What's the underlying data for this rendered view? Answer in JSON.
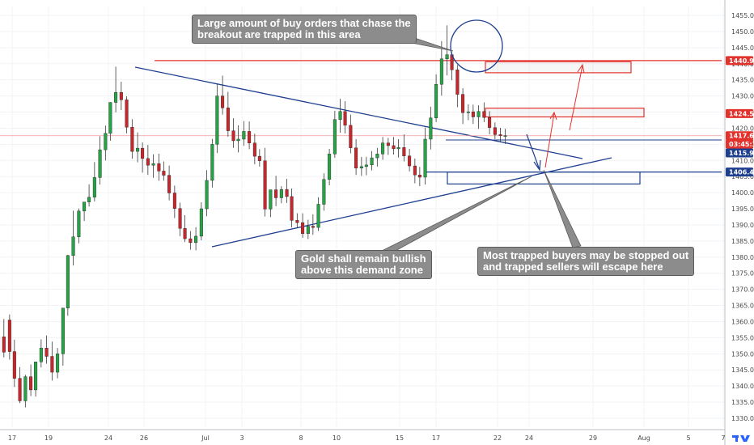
{
  "chart_data": {
    "type": "candlestick",
    "title": "",
    "xlabel": "",
    "ylabel": "",
    "ylim": [
      1327,
      1457
    ],
    "y_ticks": [
      1330,
      1335,
      1340,
      1345,
      1350,
      1355,
      1360,
      1365,
      1370,
      1375,
      1380,
      1385,
      1390,
      1395,
      1400,
      1405,
      1410,
      1415,
      1420,
      1425,
      1430,
      1435,
      1440,
      1445,
      1450,
      1455
    ],
    "y_tick_labels": [
      "1330.00",
      "1335.00",
      "1340.00",
      "1345.00",
      "1350.00",
      "1355.00",
      "1360.00",
      "1365.00",
      "1370.00",
      "1375.00",
      "1380.00",
      "1385.00",
      "1390.00",
      "1395.00",
      "1400.00",
      "1405.00",
      "1410.00",
      "1415.00",
      "1420.00",
      "1425.00",
      "1430.00",
      "1435.00",
      "1440.00",
      "1445.00",
      "1450.00",
      "1455.00"
    ],
    "x_ticks": [
      "17",
      "19",
      "24",
      "26",
      "Jul",
      "3",
      "8",
      "10",
      "15",
      "17",
      "22",
      "24",
      "29",
      "Aug",
      "5",
      "7"
    ],
    "price_tags": [
      {
        "label": "1440.98",
        "value": 1440.98,
        "color": "#e3312b"
      },
      {
        "label": "1424.55",
        "value": 1424.55,
        "color": "#e3312b"
      },
      {
        "label": "1417.67",
        "value": 1417.67,
        "color": "#e3312b"
      },
      {
        "label": "03:45:36",
        "value": 1415.3,
        "color": "#e3312b"
      },
      {
        "label": "1415.95",
        "value": 1412.9,
        "color": "#1e3f8f"
      },
      {
        "label": "1406.40",
        "value": 1406.4,
        "color": "#1e3f8f"
      }
    ],
    "horizontal_lines": [
      {
        "name": "resistance",
        "value": 1440.98,
        "color": "#e3312b"
      },
      {
        "name": "current-price",
        "value": 1417.67,
        "color": "#f09a9a"
      },
      {
        "name": "support",
        "value": 1406.4,
        "color": "#1e3f8f"
      }
    ],
    "zones": [
      {
        "name": "supply-zone-upper",
        "from": 1437.2,
        "to": 1440.6,
        "color": "#e3312b"
      },
      {
        "name": "supply-zone-lower",
        "from": 1423.5,
        "to": 1426.2,
        "color": "#e3312b"
      },
      {
        "name": "demand-zone",
        "from": 1402.7,
        "to": 1406.4,
        "color": "#1e3f8f"
      }
    ],
    "trendlines": [
      {
        "name": "descending-resistance",
        "from_date": "Jun 23",
        "from": 1439.0,
        "to_date": "Jul 26",
        "to": 1408.5
      },
      {
        "name": "ascending-support",
        "from_date": "Jun 28",
        "from": 1382.5,
        "to_date": "Jul 27",
        "to": 1409.7
      }
    ],
    "candles": {
      "first_date": "Jun 12",
      "last_date": "Jul 23",
      "open": [
        1350.4,
        1355.3,
        1360.5,
        1350.7,
        1342.4,
        1335.4,
        1342.9,
        1338.8,
        1347.5,
        1351.8,
        1349.2,
        1344.3,
        1350.0,
        1364.2,
        1380.5,
        1386.3,
        1394.3,
        1397.1,
        1398.6,
        1404.7,
        1413.3,
        1418.4,
        1428.0,
        1431.1,
        1428.8,
        1420.3,
        1412.8,
        1413.8,
        1410.6,
        1408.5,
        1409.0,
        1406.7,
        1405.4,
        1399.9,
        1395.1,
        1388.9,
        1385.7,
        1384.5,
        1386.5,
        1395.0,
        1403.8,
        1415.0,
        1430.0,
        1426.3,
        1419.2,
        1416.1,
        1416.6,
        1419.0,
        1415.4,
        1411.3,
        1409.9,
        1394.9,
        1400.9,
        1398.4,
        1401.0,
        1398.8,
        1391.4,
        1390.7,
        1387.3,
        1389.6,
        1389.2,
        1396.4,
        1404.1,
        1412.0,
        1422.7,
        1425.2,
        1420.9,
        1413.9,
        1407.6,
        1408.1,
        1408.6,
        1410.8,
        1412.0,
        1415.4,
        1414.6,
        1413.6,
        1414.0,
        1411.4,
        1408.3,
        1405.5,
        1404.8,
        1416.6,
        1423.2,
        1433.6,
        1441.5,
        1442.8,
        1438.1,
        1430.5,
        1424.8,
        1425.1,
        1423.5,
        1425.2,
        1423.3,
        1420.2,
        1418.0,
        1417.7
      ],
      "high": [
        1354.7,
        1360.8,
        1362.2,
        1354.4,
        1345.9,
        1343.5,
        1346.7,
        1345.0,
        1354.5,
        1355.7,
        1353.8,
        1351.8,
        1359.0,
        1380.7,
        1394.4,
        1395.1,
        1396.7,
        1402.6,
        1409.5,
        1417.5,
        1420.8,
        1428.1,
        1439.1,
        1434.4,
        1429.9,
        1422.8,
        1418.7,
        1415.6,
        1414.8,
        1411.9,
        1412.1,
        1409.7,
        1408.4,
        1402.2,
        1396.9,
        1393.0,
        1388.1,
        1389.3,
        1397.0,
        1407.0,
        1416.7,
        1433.6,
        1436.3,
        1431.3,
        1423.1,
        1420.9,
        1422.2,
        1422.1,
        1418.3,
        1413.5,
        1413.9,
        1400.3,
        1405.2,
        1402.0,
        1404.3,
        1401.3,
        1393.6,
        1393.6,
        1391.6,
        1393.3,
        1398.6,
        1406.0,
        1413.6,
        1425.4,
        1429.1,
        1428.4,
        1424.2,
        1416.6,
        1411.1,
        1411.1,
        1412.9,
        1413.9,
        1417.3,
        1417.0,
        1417.3,
        1416.6,
        1418.1,
        1413.6,
        1410.6,
        1408.0,
        1420.2,
        1426.7,
        1436.7,
        1447.0,
        1451.9,
        1443.5,
        1439.6,
        1432.4,
        1427.4,
        1427.3,
        1427.1,
        1428.0,
        1425.3,
        1421.8,
        1420.1,
        1419.8
      ],
      "low": [
        1348.3,
        1348.9,
        1348.2,
        1339.7,
        1334.7,
        1333.4,
        1336.9,
        1336.7,
        1345.8,
        1346.9,
        1341.7,
        1342.4,
        1346.3,
        1361.8,
        1377.4,
        1384.3,
        1391.2,
        1395.7,
        1397.3,
        1402.5,
        1410.0,
        1416.1,
        1424.9,
        1425.6,
        1418.4,
        1410.5,
        1409.4,
        1406.2,
        1405.5,
        1404.6,
        1403.7,
        1403.7,
        1397.6,
        1392.1,
        1386.5,
        1384.7,
        1382.3,
        1382.1,
        1385.2,
        1392.7,
        1401.6,
        1412.3,
        1424.2,
        1417.4,
        1413.9,
        1412.5,
        1414.5,
        1413.5,
        1408.8,
        1408.1,
        1392.6,
        1392.4,
        1395.8,
        1396.7,
        1396.8,
        1389.2,
        1389.2,
        1386.0,
        1385.6,
        1386.9,
        1388.1,
        1394.4,
        1402.3,
        1410.8,
        1418.6,
        1418.4,
        1412.2,
        1405.5,
        1405.2,
        1405.4,
        1406.9,
        1408.1,
        1410.2,
        1411.7,
        1411.8,
        1410.9,
        1409.7,
        1406.6,
        1402.9,
        1402.0,
        1402.5,
        1413.4,
        1421.9,
        1430.1,
        1436.4,
        1434.9,
        1426.5,
        1421.3,
        1422.5,
        1421.3,
        1419.8,
        1421.9,
        1418.1,
        1416.6,
        1415.6,
        1415.1
      ],
      "close": [
        1355.3,
        1350.5,
        1350.7,
        1342.4,
        1335.4,
        1342.9,
        1338.8,
        1347.5,
        1351.8,
        1349.2,
        1344.3,
        1350.0,
        1364.2,
        1380.5,
        1386.3,
        1394.3,
        1397.1,
        1398.6,
        1404.7,
        1413.3,
        1418.4,
        1428.0,
        1431.1,
        1428.8,
        1420.3,
        1412.8,
        1413.8,
        1410.6,
        1408.5,
        1409.0,
        1406.7,
        1405.4,
        1399.9,
        1395.1,
        1388.9,
        1385.7,
        1384.5,
        1386.5,
        1395.0,
        1403.8,
        1415.0,
        1430.0,
        1426.3,
        1419.2,
        1416.1,
        1416.6,
        1419.0,
        1415.4,
        1411.3,
        1409.9,
        1394.9,
        1400.9,
        1398.4,
        1401.0,
        1398.8,
        1391.4,
        1390.7,
        1387.3,
        1389.6,
        1389.2,
        1396.4,
        1404.1,
        1412.0,
        1422.7,
        1425.2,
        1420.9,
        1413.9,
        1407.6,
        1408.1,
        1408.6,
        1410.8,
        1412.0,
        1415.4,
        1414.6,
        1413.6,
        1414.0,
        1411.4,
        1408.3,
        1405.5,
        1404.8,
        1416.6,
        1423.2,
        1433.6,
        1441.5,
        1442.8,
        1438.1,
        1430.5,
        1424.8,
        1425.1,
        1423.5,
        1425.2,
        1423.3,
        1420.2,
        1418.0,
        1417.7,
        1417.7
      ]
    },
    "annotations": [
      {
        "name": "callout-trapped-buy-orders",
        "text": "Large amount of buy orders that chase the\nbreakout are trapped in this area"
      },
      {
        "name": "callout-bullish-demand",
        "text": "Gold shall remain bullish\nabove this demand zone"
      },
      {
        "name": "callout-stopped-out",
        "text": "Most trapped buyers may be stopped out\nand trapped sellers will escape here"
      }
    ],
    "colors": {
      "up": "#26a345",
      "down": "#c8262b",
      "resistance": "#e3312b",
      "support": "#1e3f8f"
    }
  }
}
